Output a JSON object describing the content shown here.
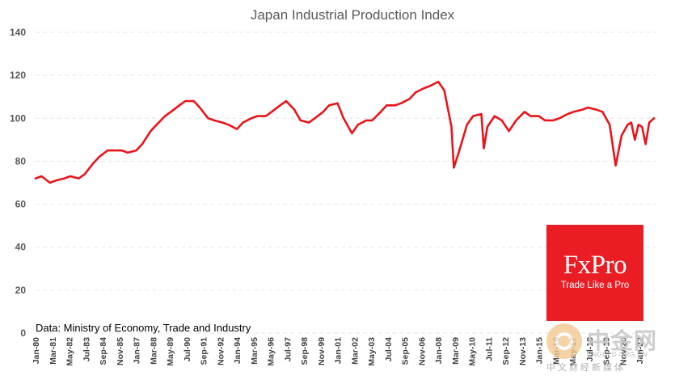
{
  "chart_data": {
    "type": "line",
    "title": "Japan Industrial Production Index",
    "xlabel": "",
    "ylabel": "",
    "ylim": [
      0,
      140
    ],
    "yticks": [
      0,
      20,
      40,
      60,
      80,
      100,
      120,
      140
    ],
    "xlim": [
      "1980-01",
      "2023-03"
    ],
    "grid": true,
    "legend": "none",
    "xtick_labels": [
      "Jan-80",
      "Mar-81",
      "May-82",
      "Jul-83",
      "Sep-84",
      "Nov-85",
      "Jan-87",
      "Mar-88",
      "May-89",
      "Jul-90",
      "Sep-91",
      "Nov-92",
      "Jan-94",
      "Mar-95",
      "May-96",
      "Jul-97",
      "Sep-98",
      "Nov-99",
      "Jan-01",
      "Mar-02",
      "May-03",
      "Jul-04",
      "Sep-05",
      "Nov-06",
      "Jan-08",
      "Mar-09",
      "May-10",
      "Jul-11",
      "Sep-12",
      "Nov-13",
      "Jan-15",
      "Mar-16",
      "May-17",
      "Jul-18",
      "Sep-19",
      "Nov-20",
      "Jan-22"
    ],
    "series": [
      {
        "color": "#e8141a",
        "points": [
          [
            "1980-01",
            72
          ],
          [
            "1980-06",
            73
          ],
          [
            "1981-01",
            70
          ],
          [
            "1981-06",
            71
          ],
          [
            "1982-01",
            72
          ],
          [
            "1982-06",
            73
          ],
          [
            "1983-01",
            72
          ],
          [
            "1983-06",
            74
          ],
          [
            "1984-01",
            79
          ],
          [
            "1984-06",
            82
          ],
          [
            "1985-01",
            85
          ],
          [
            "1985-06",
            85
          ],
          [
            "1986-01",
            85
          ],
          [
            "1986-06",
            84
          ],
          [
            "1987-01",
            85
          ],
          [
            "1987-06",
            88
          ],
          [
            "1988-01",
            94
          ],
          [
            "1988-06",
            97
          ],
          [
            "1989-01",
            101
          ],
          [
            "1989-06",
            103
          ],
          [
            "1990-01",
            106
          ],
          [
            "1990-06",
            108
          ],
          [
            "1991-01",
            108
          ],
          [
            "1991-06",
            105
          ],
          [
            "1992-01",
            100
          ],
          [
            "1992-06",
            99
          ],
          [
            "1993-01",
            98
          ],
          [
            "1993-06",
            97
          ],
          [
            "1994-01",
            95
          ],
          [
            "1994-06",
            98
          ],
          [
            "1995-01",
            100
          ],
          [
            "1995-06",
            101
          ],
          [
            "1996-01",
            101
          ],
          [
            "1996-06",
            103
          ],
          [
            "1997-01",
            106
          ],
          [
            "1997-06",
            108
          ],
          [
            "1998-01",
            104
          ],
          [
            "1998-06",
            99
          ],
          [
            "1999-01",
            98
          ],
          [
            "1999-06",
            100
          ],
          [
            "2000-01",
            103
          ],
          [
            "2000-06",
            106
          ],
          [
            "2001-01",
            107
          ],
          [
            "2001-06",
            100
          ],
          [
            "2002-01",
            93
          ],
          [
            "2002-06",
            97
          ],
          [
            "2003-01",
            99
          ],
          [
            "2003-06",
            99
          ],
          [
            "2004-01",
            103
          ],
          [
            "2004-06",
            106
          ],
          [
            "2005-01",
            106
          ],
          [
            "2005-06",
            107
          ],
          [
            "2006-01",
            109
          ],
          [
            "2006-06",
            112
          ],
          [
            "2007-01",
            114
          ],
          [
            "2007-06",
            115
          ],
          [
            "2008-01",
            117
          ],
          [
            "2008-06",
            113
          ],
          [
            "2008-12",
            96
          ],
          [
            "2009-02",
            77
          ],
          [
            "2009-06",
            84
          ],
          [
            "2010-01",
            97
          ],
          [
            "2010-06",
            101
          ],
          [
            "2011-01",
            102
          ],
          [
            "2011-03",
            86
          ],
          [
            "2011-06",
            96
          ],
          [
            "2011-12",
            101
          ],
          [
            "2012-06",
            99
          ],
          [
            "2012-12",
            94
          ],
          [
            "2013-06",
            99
          ],
          [
            "2014-01",
            103
          ],
          [
            "2014-06",
            101
          ],
          [
            "2015-01",
            101
          ],
          [
            "2015-06",
            99
          ],
          [
            "2016-01",
            99
          ],
          [
            "2016-06",
            100
          ],
          [
            "2017-01",
            102
          ],
          [
            "2017-06",
            103
          ],
          [
            "2018-01",
            104
          ],
          [
            "2018-06",
            105
          ],
          [
            "2019-01",
            104
          ],
          [
            "2019-06",
            103
          ],
          [
            "2019-12",
            97
          ],
          [
            "2020-05",
            78
          ],
          [
            "2020-10",
            92
          ],
          [
            "2021-03",
            97
          ],
          [
            "2021-06",
            98
          ],
          [
            "2021-09",
            90
          ],
          [
            "2021-12",
            97
          ],
          [
            "2022-03",
            96
          ],
          [
            "2022-06",
            88
          ],
          [
            "2022-09",
            98
          ],
          [
            "2023-01",
            100
          ]
        ]
      }
    ]
  },
  "source_text": "Data: Ministry of Economy, Trade and Industry",
  "logo": {
    "name": "FxPro",
    "tagline": "Trade Like a Pro",
    "color": "#ea1d25"
  },
  "watermark": {
    "cn_name": "中金网",
    "url": "CNGOLD.ORG.CN",
    "subtitle": "中文财经新媒体"
  }
}
